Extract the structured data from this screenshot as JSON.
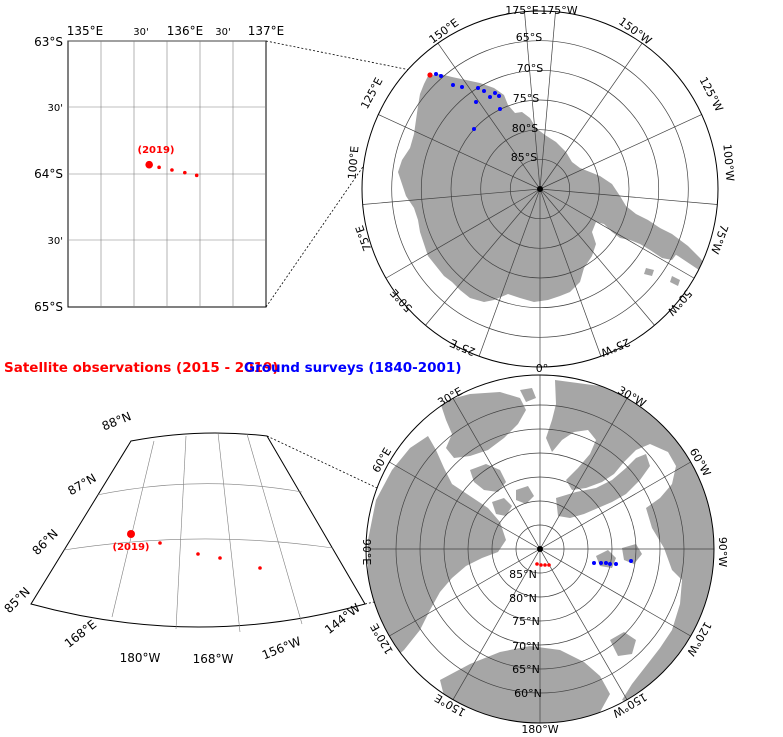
{
  "legend": {
    "satellite": "Satellite observations (2015 - 2019)",
    "ground": "Ground surveys (1840-2001)"
  },
  "colors": {
    "satellite": "#ff0000",
    "ground": "#0000ff",
    "land": "#a6a6a6",
    "grid": "#808080",
    "frame": "#000000"
  },
  "antarctic_inset": {
    "lon_labels": [
      "135°E",
      "30'",
      "136°E",
      "30'",
      "137°E"
    ],
    "lat_labels": [
      "63°S",
      "30'",
      "64°S",
      "30'",
      "65°S"
    ],
    "year_label": "(2019)",
    "satellite_points": [
      {
        "lon": 135.82,
        "lat": -63.93
      },
      {
        "lon": 135.92,
        "lat": -63.95
      },
      {
        "lon": 136.05,
        "lat": -63.97
      },
      {
        "lon": 136.18,
        "lat": -63.99
      },
      {
        "lon": 136.3,
        "lat": -64.01
      }
    ]
  },
  "antarctic_map": {
    "lat_labels": [
      "65°S",
      "70°S",
      "75°S",
      "80°S",
      "85°S"
    ],
    "lon_labels": [
      "175°E",
      "175°W",
      "150°E",
      "150°W",
      "125°E",
      "125°W",
      "100°E",
      "100°W",
      "75°E",
      "75°W",
      "50°E",
      "50°W",
      "25°E",
      "25°W"
    ]
  },
  "arctic_inset": {
    "lat_labels": [
      "88°N",
      "87°N",
      "86°N",
      "85°N"
    ],
    "lon_labels": [
      "168°E",
      "180°W",
      "168°W",
      "156°W",
      "144°W"
    ],
    "year_label": "(2019)"
  },
  "arctic_map": {
    "lat_labels": [
      "85°N",
      "80°N",
      "75°N",
      "70°N",
      "65°N",
      "60°N"
    ],
    "lon_labels": [
      "0°",
      "30°E",
      "30°W",
      "60°E",
      "60°W",
      "90°E",
      "90°W",
      "120°E",
      "120°W",
      "150°E",
      "150°W",
      "180°W"
    ]
  }
}
